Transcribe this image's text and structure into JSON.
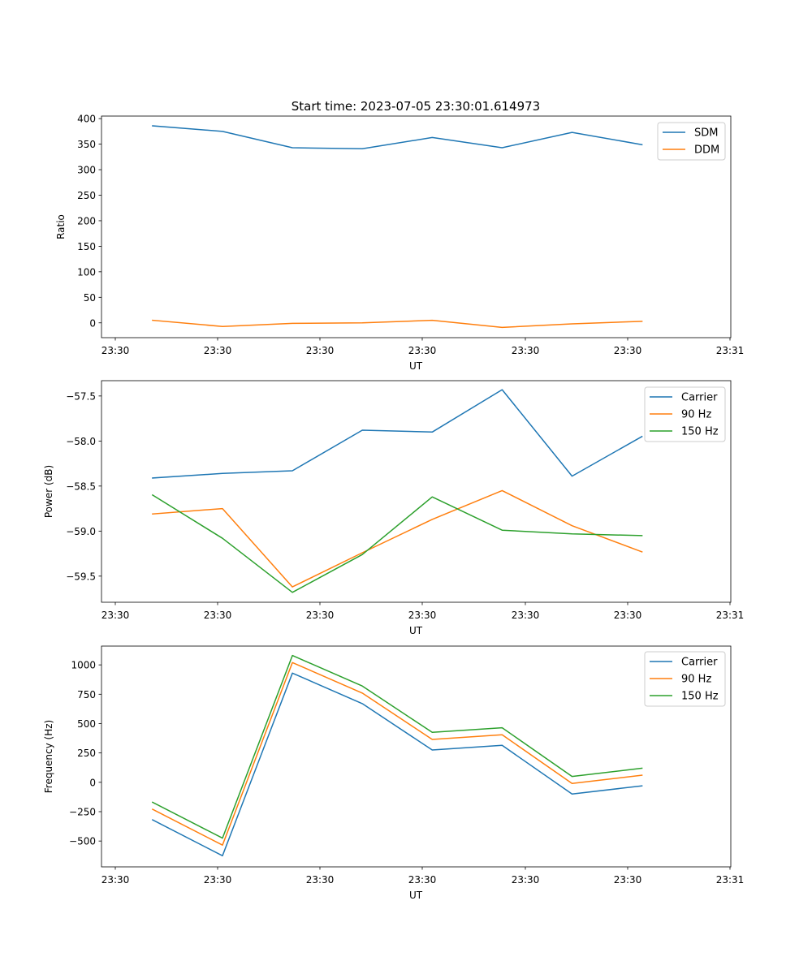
{
  "figure": {
    "title": "Start time: 2023-07-05 23:30:01.614973"
  },
  "colors": {
    "blue": "#1f77b4",
    "orange": "#ff7f0e",
    "green": "#2ca02c"
  },
  "chart_data": [
    {
      "type": "line",
      "title": "Start time: 2023-07-05 23:30:01.614973",
      "xlabel": "UT",
      "ylabel": "Ratio",
      "xticks": [
        "23:30",
        "23:30",
        "23:30",
        "23:30",
        "23:30",
        "23:30",
        "23:31"
      ],
      "x": [
        1,
        2,
        3,
        4,
        5,
        6,
        7,
        8
      ],
      "xlim": [
        0.27,
        9.27
      ],
      "ylim": [
        -29,
        405
      ],
      "yticks": [
        0,
        50,
        100,
        150,
        200,
        250,
        300,
        350,
        400
      ],
      "legend_position": "top-right",
      "series": [
        {
          "name": "SDM",
          "color": "#1f77b4",
          "values": [
            386,
            375,
            343,
            341,
            363,
            343,
            373,
            349
          ]
        },
        {
          "name": "DDM",
          "color": "#ff7f0e",
          "values": [
            5,
            -7,
            -1,
            0,
            5,
            -9,
            -2,
            3
          ]
        }
      ]
    },
    {
      "type": "line",
      "title": "",
      "xlabel": "UT",
      "ylabel": "Power (dB)",
      "xticks": [
        "23:30",
        "23:30",
        "23:30",
        "23:30",
        "23:30",
        "23:30",
        "23:31"
      ],
      "x": [
        1,
        2,
        3,
        4,
        5,
        6,
        7,
        8
      ],
      "xlim": [
        0.27,
        9.27
      ],
      "ylim": [
        -59.79,
        -57.33
      ],
      "yticks": [
        -59.5,
        -59.0,
        -58.5,
        -58.0,
        -57.5
      ],
      "ytick_labels": [
        "−59.5",
        "−59.0",
        "−58.5",
        "−58.0",
        "−57.5"
      ],
      "legend_position": "top-right",
      "series": [
        {
          "name": "Carrier",
          "color": "#1f77b4",
          "values": [
            -58.41,
            -58.36,
            -58.33,
            -57.88,
            -57.9,
            -57.43,
            -58.39,
            -57.95
          ]
        },
        {
          "name": "90 Hz",
          "color": "#ff7f0e",
          "values": [
            -58.81,
            -58.75,
            -59.62,
            -59.24,
            -58.87,
            -58.55,
            -58.94,
            -59.23
          ]
        },
        {
          "name": "150 Hz",
          "color": "#2ca02c",
          "values": [
            -58.6,
            -59.08,
            -59.68,
            -59.26,
            -58.62,
            -58.99,
            -59.03,
            -59.05
          ]
        }
      ]
    },
    {
      "type": "line",
      "title": "",
      "xlabel": "UT",
      "ylabel": "Frequency (Hz)",
      "xticks": [
        "23:30",
        "23:30",
        "23:30",
        "23:30",
        "23:30",
        "23:30",
        "23:31"
      ],
      "x": [
        1,
        2,
        3,
        4,
        5,
        6,
        7,
        8
      ],
      "xlim": [
        0.27,
        9.27
      ],
      "ylim": [
        -720,
        1160
      ],
      "yticks": [
        -500,
        -250,
        0,
        250,
        500,
        750,
        1000
      ],
      "ytick_labels": [
        "−500",
        "−250",
        "0",
        "250",
        "500",
        "750",
        "1000"
      ],
      "legend_position": "top-right",
      "series": [
        {
          "name": "Carrier",
          "color": "#1f77b4",
          "values": [
            -320,
            -625,
            930,
            670,
            275,
            315,
            -100,
            -30
          ]
        },
        {
          "name": "90 Hz",
          "color": "#ff7f0e",
          "values": [
            -230,
            -535,
            1020,
            760,
            365,
            405,
            -10,
            60
          ]
        },
        {
          "name": "150 Hz",
          "color": "#2ca02c",
          "values": [
            -170,
            -475,
            1080,
            820,
            425,
            465,
            50,
            120
          ]
        }
      ]
    }
  ]
}
